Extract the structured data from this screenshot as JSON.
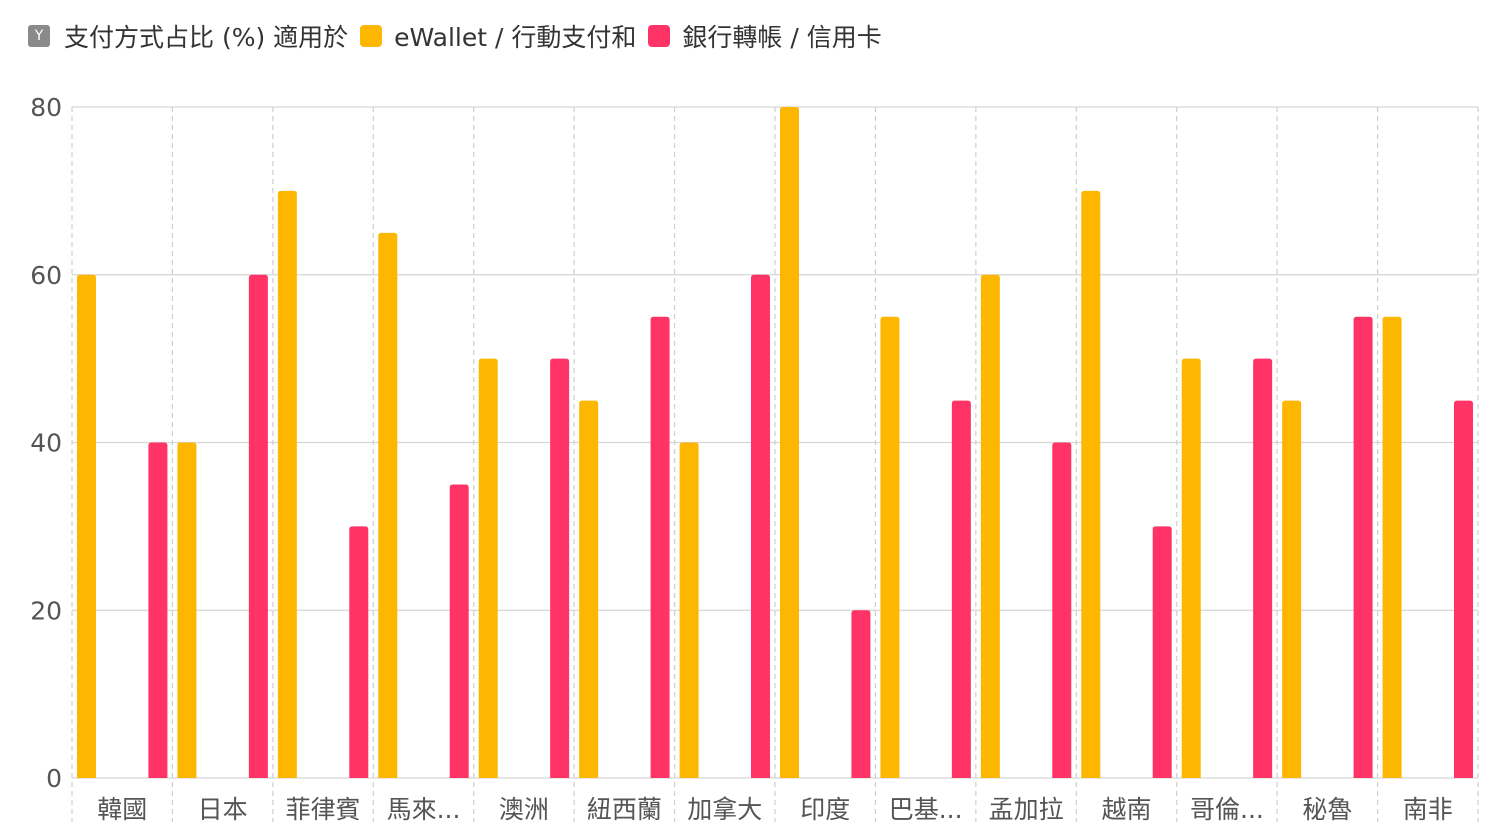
{
  "legend": {
    "badge": "Y",
    "title": "支付方式占比 (%) 適用於",
    "series1_label": "eWallet / 行動支付和",
    "series2_label": "銀行轉帳 / 信用卡"
  },
  "chart_data": {
    "type": "bar",
    "categories": [
      "韓國",
      "日本",
      "菲律賓",
      "馬來...",
      "澳洲",
      "紐西蘭",
      "加拿大",
      "印度",
      "巴基...",
      "孟加拉",
      "越南",
      "哥倫...",
      "秘魯",
      "南非"
    ],
    "series": [
      {
        "name": "eWallet / 行動支付和",
        "color": "#FDB700",
        "values": [
          60,
          40,
          70,
          65,
          50,
          45,
          40,
          80,
          55,
          60,
          70,
          50,
          45,
          55
        ]
      },
      {
        "name": "銀行轉帳 / 信用卡",
        "color": "#FF3366",
        "values": [
          40,
          60,
          30,
          35,
          50,
          55,
          60,
          20,
          45,
          40,
          30,
          50,
          55,
          45
        ]
      }
    ],
    "ylim": [
      0,
      80
    ],
    "yticks": [
      0,
      20,
      40,
      60,
      80
    ],
    "grid": true,
    "legend_position": "top-left"
  }
}
